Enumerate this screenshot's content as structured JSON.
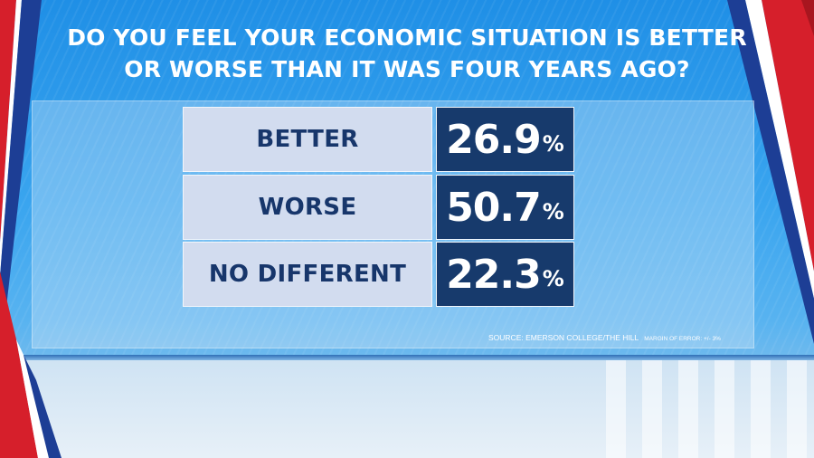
{
  "title_lines": [
    "DO YOU FEEL YOUR ECONOMIC SITUATION IS BETTER",
    "OR WORSE THAN IT WAS FOUR YEARS AGO?"
  ],
  "source": "SOURCE: EMERSON COLLEGE/THE HILL",
  "margin_of_error": "MARGIN OF ERROR: +/- 3%",
  "colors": {
    "label_box": "#d2dcef",
    "value_box": "#173a6c",
    "label_text": "#17366b",
    "background": "#3aa5ef",
    "accent_red": "#d61f2b"
  },
  "chart_data": {
    "type": "table",
    "title": "DO YOU FEEL YOUR ECONOMIC SITUATION IS BETTER OR WORSE THAN IT WAS FOUR YEARS AGO?",
    "categories": [
      "BETTER",
      "WORSE",
      "NO DIFFERENT"
    ],
    "values": [
      26.9,
      50.7,
      22.3
    ],
    "value_labels": [
      "26.9",
      "50.7",
      "22.3"
    ],
    "unit": "%"
  }
}
